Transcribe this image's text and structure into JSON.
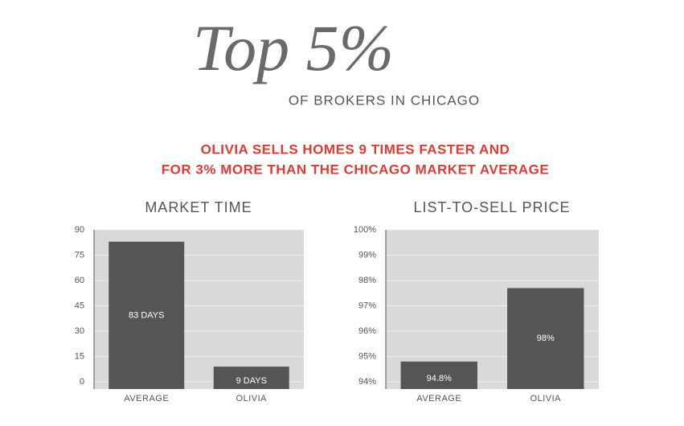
{
  "header": {
    "title": "Top 5%",
    "subtitle": "OF BROKERS IN CHICAGO",
    "headline": [
      "OLIVIA SELLS HOMES 9 TIMES FASTER AND",
      "FOR 3% MORE THAN THE CHICAGO MARKET AVERAGE"
    ]
  },
  "chart_data": [
    {
      "type": "bar",
      "title": "MARKET TIME",
      "categories": [
        "AVERAGE",
        "OLIVIA"
      ],
      "values": [
        83,
        9
      ],
      "value_labels": [
        "83 DAYS",
        "9 DAYS"
      ],
      "color": "#555558",
      "ylim": [
        0,
        90
      ],
      "yticks": [
        0,
        15,
        30,
        45,
        60,
        75,
        90
      ],
      "grid": true
    },
    {
      "type": "bar",
      "title": "LIST-TO-SELL PRICE",
      "categories": [
        "AVERAGE",
        "OLIVIA"
      ],
      "values": [
        94.8,
        97.7
      ],
      "value_labels": [
        "94.8%",
        "98%"
      ],
      "color": "#555558",
      "ylim": [
        94,
        100
      ],
      "yticks": [
        {
          "value": 94,
          "label": "94%"
        },
        {
          "value": 95,
          "label": "95%"
        },
        {
          "value": 96,
          "label": "96%"
        },
        {
          "value": 97,
          "label": "97%"
        },
        {
          "value": 98,
          "label": "98%"
        },
        {
          "value": 99,
          "label": "99%"
        },
        {
          "value": 100,
          "label": "100%"
        }
      ],
      "grid": true
    }
  ]
}
